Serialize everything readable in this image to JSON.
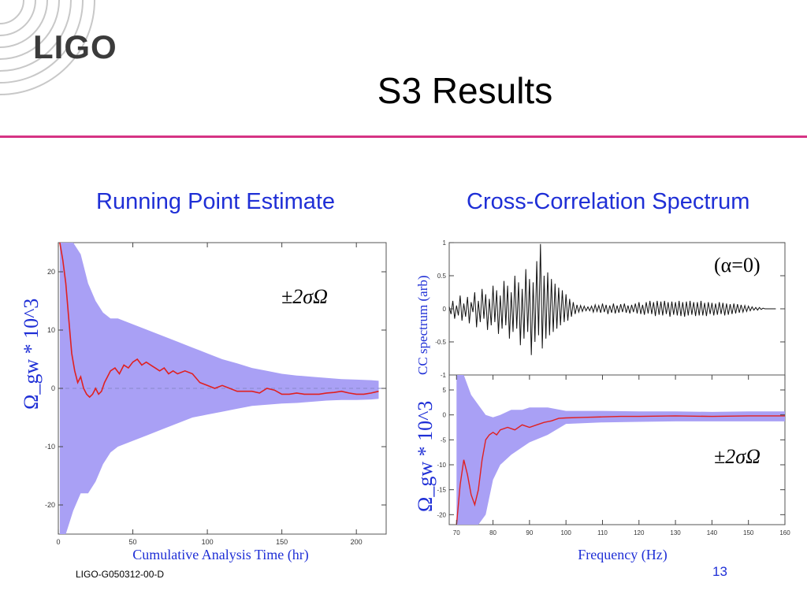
{
  "slide": {
    "logo": "LIGO",
    "title": "S3 Results",
    "footer_id": "LIGO-G050312-00-D",
    "page_number": "13",
    "accent_color": "#d63384",
    "title_color": "#1f2fd6"
  },
  "chart_data": [
    {
      "type": "line",
      "title": "Running Point Estimate",
      "xlabel": "Cumulative Analysis Time (hr)",
      "ylabel": "Ω_gw * 10^3",
      "xlim": [
        0,
        220
      ],
      "ylim": [
        -25,
        25
      ],
      "xticks": [
        0,
        50,
        100,
        150,
        200
      ],
      "xtick_labels": [
        "0",
        "50",
        "100",
        "150",
        "200"
      ],
      "yticks": [
        20,
        10,
        0,
        -10,
        -20
      ],
      "ytick_labels": [
        "20",
        "10",
        "0",
        "-10",
        "-20"
      ],
      "band_label": "±2σΩ",
      "series": [
        {
          "role": "point-estimate",
          "color": "#e02020",
          "x": [
            1,
            3,
            5,
            7,
            9,
            11,
            13,
            15,
            17,
            19,
            21,
            23,
            25,
            27,
            29,
            31,
            33,
            35,
            38,
            41,
            44,
            47,
            50,
            53,
            56,
            59,
            62,
            65,
            68,
            71,
            74,
            77,
            80,
            85,
            90,
            95,
            100,
            105,
            110,
            115,
            120,
            125,
            130,
            135,
            140,
            145,
            150,
            155,
            160,
            165,
            170,
            175,
            180,
            185,
            190,
            195,
            200,
            205,
            210,
            215
          ],
          "y": [
            25,
            22,
            18,
            12,
            6,
            3,
            1,
            2,
            0,
            -1,
            -1.5,
            -1,
            0,
            -1,
            -0.5,
            1,
            2,
            3,
            3.5,
            2.5,
            4,
            3.5,
            4.5,
            5,
            4,
            4.5,
            4,
            3.5,
            3,
            3.5,
            2.5,
            3,
            2.5,
            3,
            2.5,
            1,
            0.5,
            0,
            0.5,
            0,
            -0.5,
            -0.5,
            -0.5,
            -0.8,
            0,
            -0.3,
            -1,
            -1,
            -0.8,
            -1,
            -1,
            -1,
            -0.8,
            -0.7,
            -0.5,
            -0.8,
            -1,
            -1,
            -0.8,
            -0.5
          ]
        }
      ],
      "band": {
        "color": "#a9a0f5",
        "x": [
          1,
          5,
          10,
          15,
          20,
          25,
          30,
          35,
          40,
          50,
          60,
          70,
          80,
          90,
          100,
          110,
          120,
          130,
          140,
          150,
          160,
          170,
          180,
          190,
          200,
          210,
          215
        ],
        "upper": [
          25,
          25,
          25,
          23,
          18,
          15,
          13,
          12,
          12,
          11,
          10,
          9,
          8,
          7,
          6,
          5,
          4.3,
          3.5,
          3,
          2.5,
          2.2,
          2,
          1.8,
          1.6,
          1.5,
          1.4,
          1.3
        ],
        "lower": [
          -25,
          -25,
          -21,
          -18,
          -18,
          -16,
          -13,
          -11,
          -10,
          -9,
          -8,
          -7,
          -6,
          -5,
          -4.5,
          -4,
          -3.5,
          -3,
          -2.8,
          -2.6,
          -2.5,
          -2.3,
          -2.1,
          -2,
          -2,
          -1.9,
          -1.8
        ]
      }
    },
    {
      "type": "line",
      "title": "Cross-Correlation Spectrum",
      "xlabel": "",
      "ylabel": "CC spectrum (arb)",
      "annotation": "(α=0)",
      "xlim": [
        68,
        160
      ],
      "ylim": [
        -1,
        1
      ],
      "yticks": [
        1,
        0.5,
        0,
        -0.5,
        -1
      ],
      "ytick_labels": [
        "1",
        "0.5",
        "0",
        "-0.5",
        "-1"
      ],
      "series": [
        {
          "role": "cc-spectrum",
          "color": "#111111",
          "x_start": 68,
          "x_step": 0.5,
          "y": [
            0.03,
            -0.08,
            0.12,
            -0.15,
            0.05,
            -0.1,
            0.2,
            -0.18,
            0.08,
            -0.12,
            0.18,
            -0.22,
            0.1,
            -0.05,
            0.25,
            -0.28,
            0.12,
            -0.2,
            0.3,
            -0.15,
            0.22,
            -0.32,
            0.15,
            -0.25,
            0.35,
            -0.2,
            0.28,
            -0.38,
            0.2,
            -0.3,
            0.42,
            -0.25,
            0.35,
            -0.45,
            0.25,
            -0.35,
            0.5,
            -0.3,
            0.4,
            -0.55,
            0.3,
            -0.45,
            0.6,
            -0.35,
            0.45,
            -0.7,
            0.4,
            -0.5,
            0.72,
            -0.4,
            0.98,
            -0.6,
            0.5,
            -0.45,
            0.55,
            -0.4,
            0.45,
            -0.35,
            0.38,
            -0.3,
            0.32,
            -0.25,
            0.28,
            -0.2,
            0.22,
            -0.18,
            0.15,
            -0.12,
            0.1,
            -0.08,
            0.06,
            -0.05,
            0.05,
            -0.04,
            0.04,
            -0.03,
            0.03,
            -0.03,
            0.04,
            -0.05,
            0.06,
            -0.04,
            0.05,
            -0.06,
            0.08,
            -0.05,
            0.06,
            -0.08,
            0.05,
            -0.06,
            0.08,
            -0.07,
            0.05,
            -0.06,
            0.07,
            -0.05,
            0.08,
            -0.06,
            0.05,
            -0.07,
            0.06,
            -0.05,
            0.08,
            -0.07,
            0.1,
            -0.08,
            0.06,
            -0.09,
            0.1,
            -0.07,
            0.12,
            -0.08,
            0.1,
            -0.11,
            0.12,
            -0.09,
            0.11,
            -0.1,
            0.12,
            -0.08,
            0.1,
            -0.12,
            0.11,
            -0.09,
            0.1,
            -0.1,
            0.12,
            -0.11,
            0.1,
            -0.12,
            0.11,
            -0.1,
            0.12,
            -0.09,
            0.1,
            -0.11,
            0.1,
            -0.1,
            0.12,
            -0.1,
            0.09,
            -0.11,
            0.1,
            -0.08,
            0.09,
            -0.1,
            0.08,
            -0.09,
            0.1,
            -0.08,
            0.09,
            -0.1,
            0.08,
            -0.09,
            0.07,
            -0.08,
            0.08,
            -0.07,
            0.07,
            -0.06,
            0.06,
            -0.05,
            0.05,
            -0.04,
            0.04,
            -0.03,
            0.03,
            -0.02,
            0.02,
            -0.02,
            0.02,
            -0.01,
            0.01,
            0,
            0,
            0,
            0,
            0,
            0,
            0
          ]
        }
      ]
    },
    {
      "type": "line",
      "title": "",
      "xlabel": "Frequency (Hz)",
      "ylabel": "Ω_gw * 10^3",
      "xlim": [
        68,
        160
      ],
      "ylim": [
        -22,
        8
      ],
      "xticks": [
        70,
        80,
        90,
        100,
        110,
        120,
        130,
        140,
        150,
        160
      ],
      "xtick_labels": [
        "70",
        "80",
        "90",
        "100",
        "110",
        "120",
        "130",
        "140",
        "150",
        "160"
      ],
      "yticks": [
        5,
        0,
        -5,
        -10,
        -15,
        -20
      ],
      "ytick_labels": [
        "5",
        "0",
        "-5",
        "-10",
        "-15",
        "-20"
      ],
      "band_label": "±2σΩ",
      "series": [
        {
          "role": "point-estimate",
          "color": "#e02020",
          "x": [
            70,
            71,
            72,
            73,
            74,
            75,
            76,
            77,
            78,
            79,
            80,
            81,
            82,
            84,
            86,
            88,
            90,
            92,
            94,
            96,
            98,
            100,
            105,
            110,
            115,
            120,
            130,
            140,
            150,
            160
          ],
          "y": [
            -22,
            -14,
            -9,
            -12,
            -16,
            -18,
            -15,
            -9,
            -5,
            -4,
            -3.5,
            -4,
            -3,
            -2.5,
            -3,
            -2,
            -2.5,
            -2,
            -1.5,
            -1.2,
            -0.7,
            -0.6,
            -0.5,
            -0.4,
            -0.3,
            -0.3,
            -0.2,
            -0.3,
            -0.2,
            -0.2
          ]
        }
      ],
      "band": {
        "color": "#a9a0f5",
        "x": [
          70,
          72,
          74,
          76,
          78,
          80,
          82,
          85,
          88,
          90,
          95,
          100,
          110,
          120,
          130,
          140,
          150,
          160
        ],
        "upper": [
          8,
          8,
          4,
          2,
          0,
          -0.5,
          0,
          1,
          1,
          1.5,
          1.5,
          0.8,
          0.8,
          0.7,
          0.7,
          0.6,
          0.7,
          0.7
        ],
        "lower": [
          -22,
          -22,
          -22,
          -22,
          -20,
          -13,
          -10,
          -8,
          -6.5,
          -5.5,
          -4,
          -1.8,
          -1.5,
          -1.4,
          -1.3,
          -1.3,
          -1.3,
          -1.3
        ]
      }
    }
  ]
}
